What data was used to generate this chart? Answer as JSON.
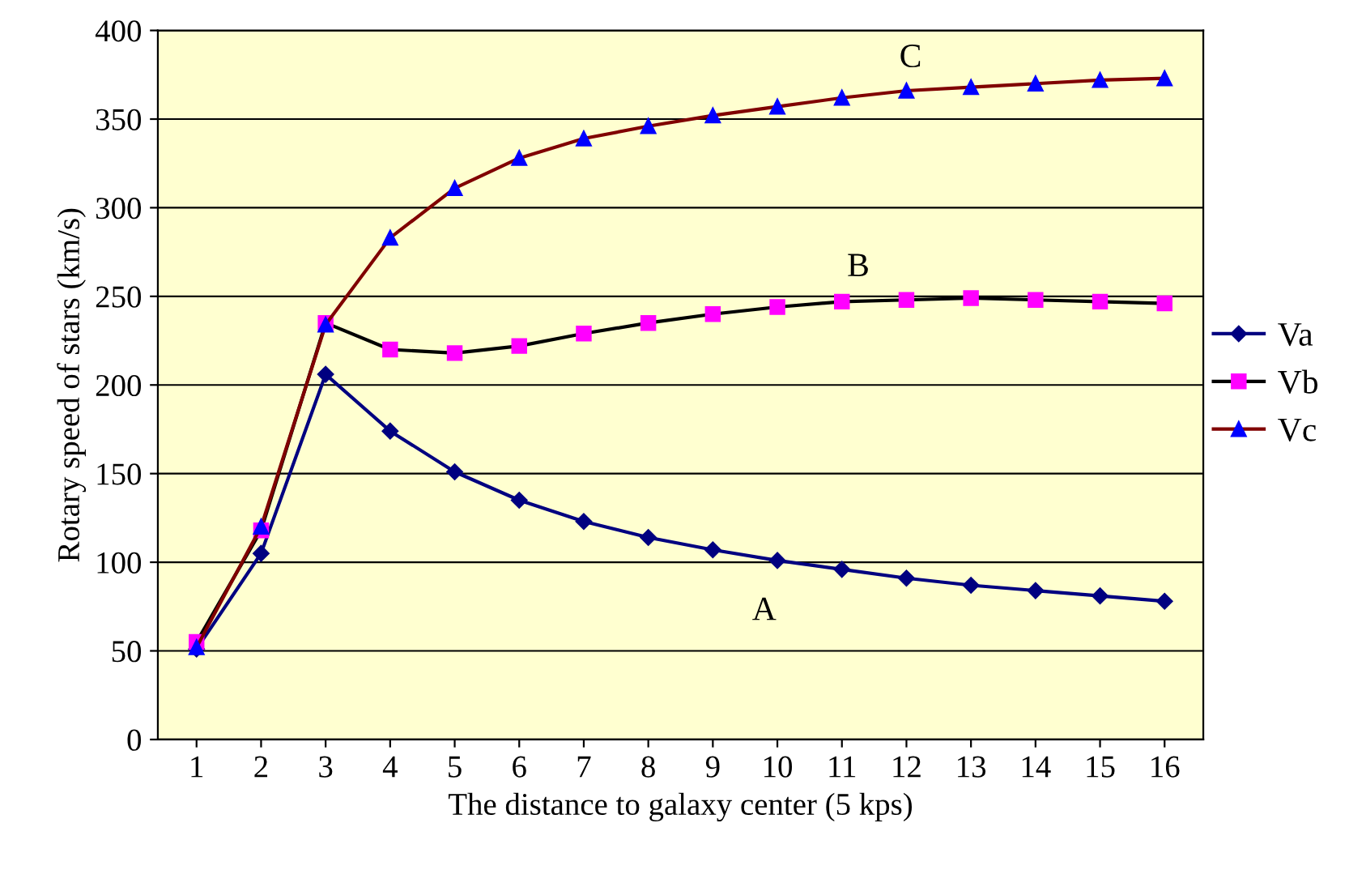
{
  "chart_data": {
    "type": "line",
    "xlabel": "The distance to galaxy center (5 kps)",
    "ylabel": "Rotary speed of stars (km/s)",
    "categories": [
      "1",
      "2",
      "3",
      "4",
      "5",
      "6",
      "7",
      "8",
      "9",
      "10",
      "11",
      "12",
      "13",
      "14",
      "15",
      "16"
    ],
    "series": [
      {
        "name": "Va",
        "color": "#000080",
        "marker": "diamond",
        "values": [
          51,
          105,
          206,
          174,
          151,
          135,
          123,
          114,
          107,
          101,
          96,
          91,
          87,
          84,
          81,
          78
        ]
      },
      {
        "name": "Vb",
        "color": "#ff00ff",
        "marker": "square",
        "values": [
          55,
          118,
          235,
          220,
          218,
          222,
          229,
          235,
          240,
          244,
          247,
          248,
          249,
          248,
          247,
          246
        ]
      },
      {
        "name": "Vc",
        "color": "#0000ff",
        "marker": "triangle",
        "values": [
          52,
          120,
          234,
          283,
          311,
          328,
          339,
          346,
          352,
          357,
          362,
          366,
          368,
          370,
          372,
          373
        ]
      }
    ],
    "annotations": [
      "A",
      "B",
      "C"
    ],
    "ylim": [
      0,
      400
    ],
    "yticks": [
      0,
      50,
      100,
      150,
      200,
      250,
      300,
      350,
      400
    ],
    "grid": "y",
    "legend": "right",
    "line_style": "solid"
  }
}
